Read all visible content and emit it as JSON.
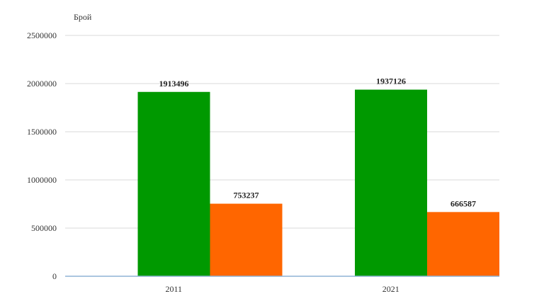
{
  "chart_data": {
    "type": "bar",
    "ylabel": "Брой",
    "categories": [
      "2011",
      "2021"
    ],
    "series": [
      {
        "values": [
          1913496,
          1937126
        ],
        "color": "#009900"
      },
      {
        "values": [
          753237,
          666587
        ],
        "color": "#ff6600"
      }
    ],
    "ylim": [
      0,
      2500000
    ],
    "yticks": [
      "0",
      "500000",
      "1000000",
      "1500000",
      "2000000",
      "2500000"
    ],
    "ytick_values": [
      0,
      500000,
      1000000,
      1500000,
      2000000,
      2500000
    ],
    "data_labels": [
      [
        "1913496",
        "1937126"
      ],
      [
        "753237",
        "666587"
      ]
    ],
    "grid": true,
    "legend": "none"
  }
}
